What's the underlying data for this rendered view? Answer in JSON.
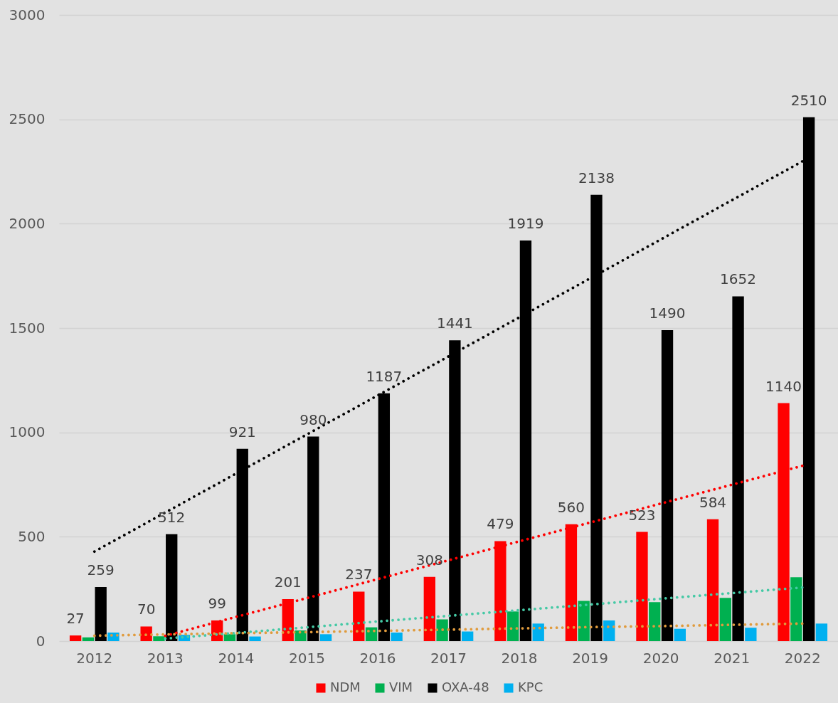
{
  "chart_data": {
    "type": "bar",
    "categories": [
      "2012",
      "2013",
      "2014",
      "2015",
      "2016",
      "2017",
      "2018",
      "2019",
      "2020",
      "2021",
      "2022"
    ],
    "series": [
      {
        "name": "NDM",
        "color": "#ff0000",
        "values": [
          27,
          70,
          99,
          201,
          237,
          308,
          479,
          560,
          523,
          584,
          1140
        ],
        "value_labels": [
          "27",
          "70",
          "99",
          "201",
          "237",
          "308",
          "479",
          "560",
          "523",
          "584",
          "1140"
        ]
      },
      {
        "name": "VIM",
        "color": "#00b050",
        "values": [
          18,
          23,
          33,
          51,
          66,
          104,
          142,
          193,
          187,
          207,
          306
        ]
      },
      {
        "name": "OXA-48",
        "color": "#000000",
        "values": [
          259,
          512,
          921,
          980,
          1187,
          1441,
          1919,
          2138,
          1490,
          1652,
          2510
        ],
        "value_labels": [
          "259",
          "512",
          "921",
          "980",
          "1187",
          "1441",
          "1919",
          "2138",
          "1490",
          "1652",
          "2510"
        ]
      },
      {
        "name": "KPC",
        "color": "#00b0f0",
        "values": [
          41,
          30,
          22,
          33,
          41,
          46,
          84,
          99,
          59,
          64,
          84
        ]
      },
      {
        "type": "line",
        "values": [
          429,
          616,
          803,
          990,
          1177,
          1364,
          1551,
          1738,
          1925,
          2112,
          2299
        ],
        "color": "#000000",
        "line_style": "dotted"
      },
      {
        "type": "line",
        "values": [
          null,
          25,
          116,
          206,
          297,
          387,
          478,
          568,
          659,
          749,
          840
        ],
        "color": "#ff0000",
        "line_style": "dotted"
      },
      {
        "type": "line",
        "values": [
          null,
          12,
          39,
          66,
          94,
          121,
          148,
          175,
          203,
          230,
          257
        ],
        "color": "#45c9a5",
        "line_style": "dotted"
      },
      {
        "type": "line",
        "values": [
          26,
          32,
          38,
          43,
          49,
          55,
          61,
          67,
          72,
          78,
          84
        ],
        "color": "#e09b3d",
        "line_style": "dotted"
      }
    ],
    "ylim": [
      0,
      3000
    ],
    "yticks": [
      0,
      500,
      1000,
      1500,
      2000,
      2500,
      3000
    ],
    "grid": "y",
    "legend": "bottom"
  }
}
